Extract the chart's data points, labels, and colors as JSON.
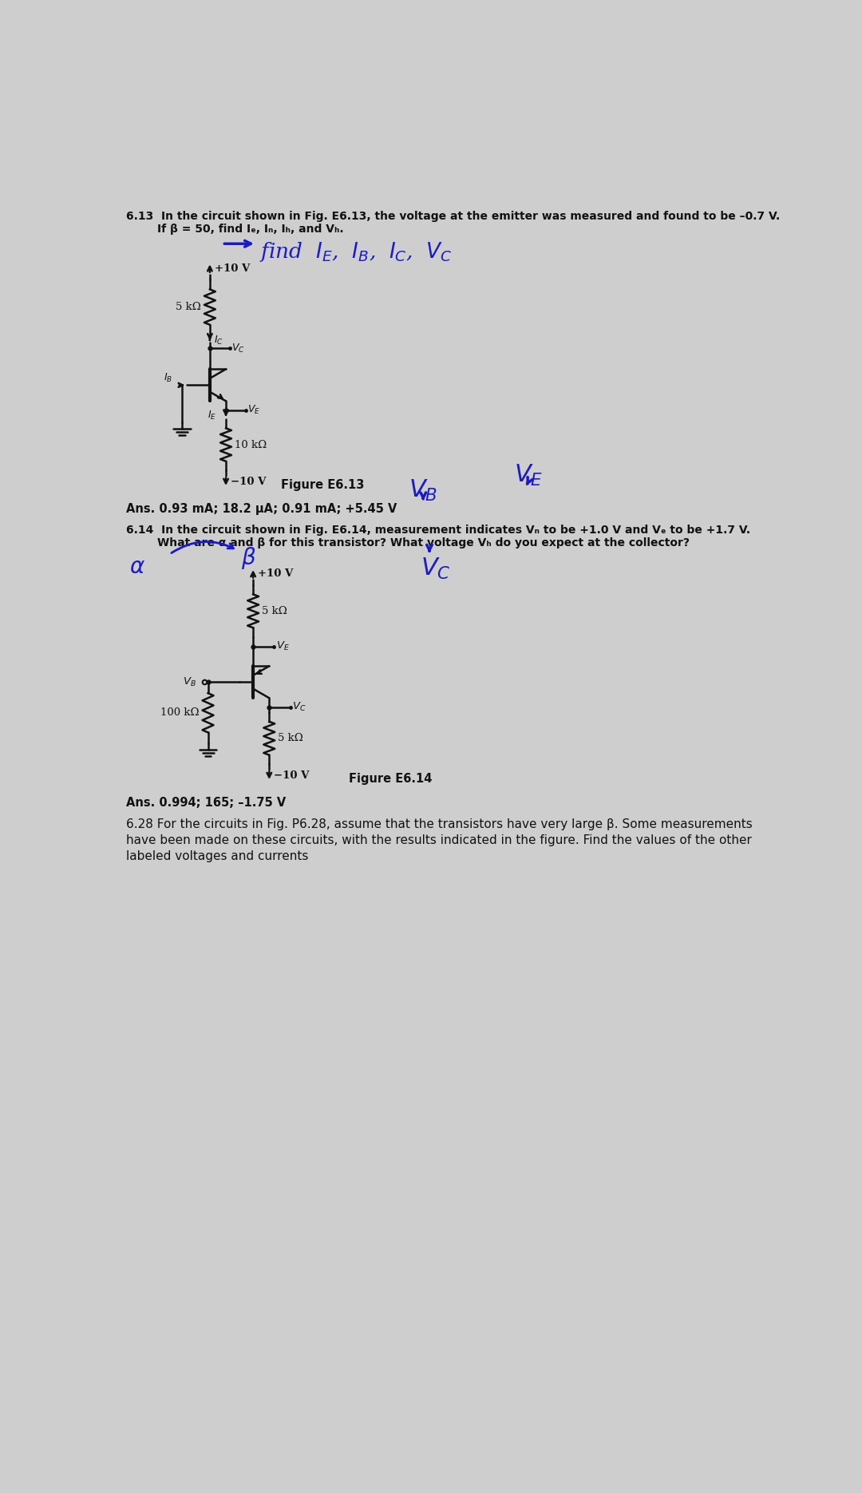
{
  "bg_color": "#cecece",
  "text_color": "#111111",
  "blue_color": "#1a1acc",
  "circuit_color": "#111111",
  "prob613_line1": "6.13  In the circuit shown in Fig. E6.13, the voltage at the emitter was measured and found to be –0.7 V.",
  "prob613_line2": "        If β = 50, find Iₑ, Iₙ, Iₕ, and Vₕ.",
  "prob613_ans": "Ans. 0.93 mA; 18.2 μA; 0.91 mA; +5.45 V",
  "fig613_label": "Figure E6.13",
  "prob614_line1": "6.14  In the circuit shown in Fig. E6.14, measurement indicates Vₙ to be +1.0 V and Vₑ to be +1.7 V.",
  "prob614_line2": "        What are α and β for this transistor? What voltage Vₕ do you expect at the collector?",
  "prob614_ans": "Ans. 0.994; 165; –1.75 V",
  "fig614_label": "Figure E6.14",
  "prob628_line1": "6.28 For the circuits in Fig. P6.28, assume that the transistors have very large β. Some measurements",
  "prob628_line2": "have been made on these circuits, with the results indicated in the figure. Find the values of the other",
  "prob628_line3": "labeled voltages and currents",
  "vcc_label": "+10 V",
  "vee_label": "−10 V",
  "r5k_label": "5 kΩ",
  "r10k_label": "10 kΩ",
  "r100k_label": "100 kΩ"
}
